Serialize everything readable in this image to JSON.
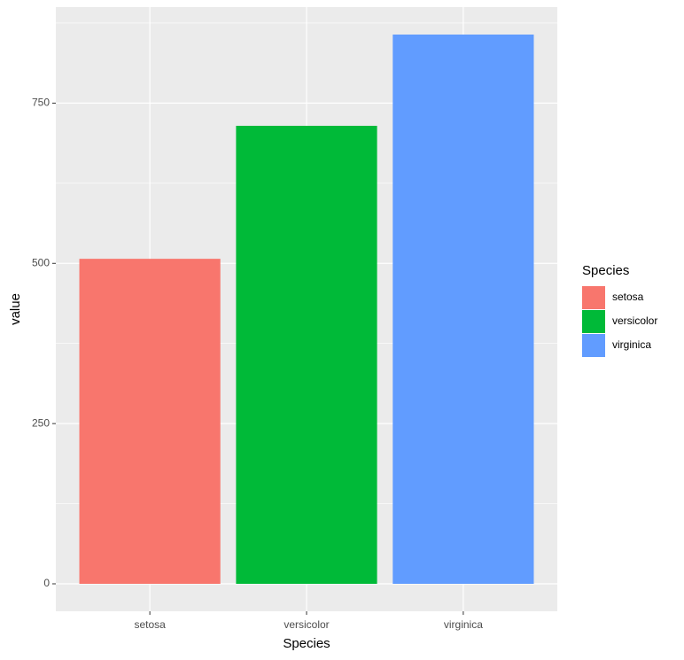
{
  "chart_data": {
    "type": "bar",
    "categories": [
      "setosa",
      "versicolor",
      "virginica"
    ],
    "values": [
      507.1,
      714.6,
      857.0
    ],
    "colors": [
      "#f8766d",
      "#00ba38",
      "#619cff"
    ],
    "x_label": "Species",
    "y_label": "value",
    "legend_title": "Species",
    "ylim": [
      -42.85,
      899.85
    ],
    "yticks": [
      0,
      250,
      500,
      750
    ],
    "grid": true,
    "legend": "right"
  }
}
